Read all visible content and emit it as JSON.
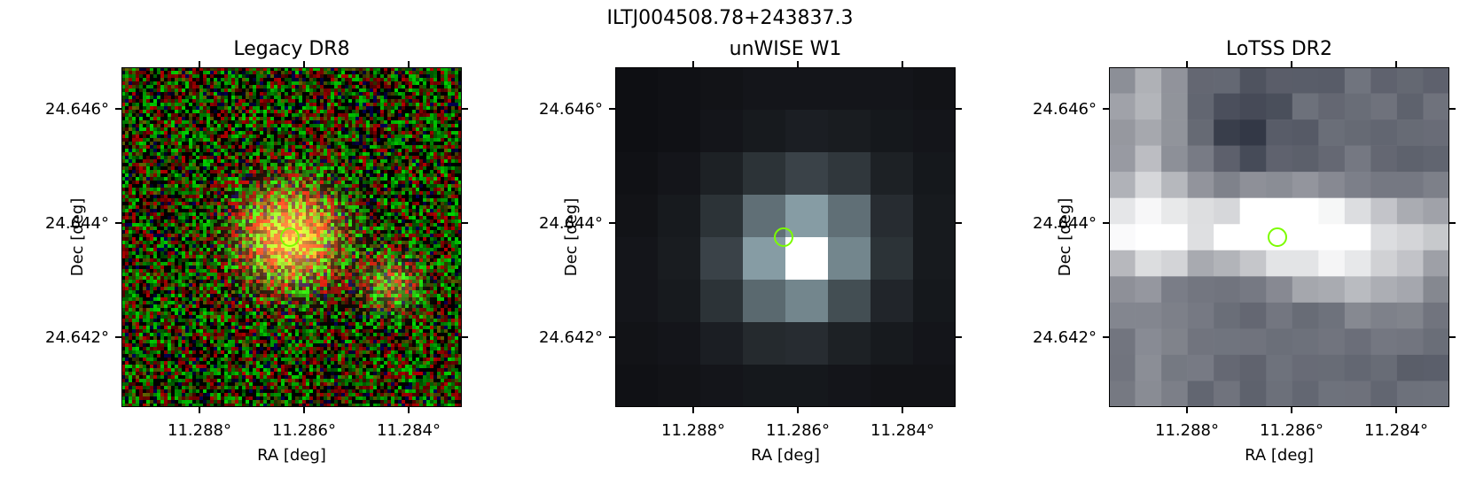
{
  "figure": {
    "title": "ILTJ004508.78+243837.3"
  },
  "panels": [
    {
      "title": "Legacy DR8",
      "xlabel": "RA [deg]",
      "ylabel": "Dec [deg]",
      "xticks": [
        "11.288°",
        "11.286°",
        "11.284°"
      ],
      "yticks": [
        "24.646°",
        "24.644°",
        "24.642°"
      ]
    },
    {
      "title": "unWISE W1",
      "xlabel": "RA [deg]",
      "ylabel": "Dec [deg]",
      "xticks": [
        "11.288°",
        "11.286°",
        "11.284°"
      ],
      "yticks": [
        "24.646°",
        "24.644°",
        "24.642°"
      ]
    },
    {
      "title": "LoTSS DR2",
      "xlabel": "RA [deg]",
      "ylabel": "Dec [deg]",
      "xticks": [
        "11.288°",
        "11.286°",
        "11.284°"
      ],
      "yticks": [
        "24.646°",
        "24.644°",
        "24.642°"
      ]
    }
  ],
  "marker": {
    "ra": 11.2862,
    "dec": 24.6438,
    "color": "#7cfc00"
  },
  "axes": {
    "ra_range": [
      11.2895,
      11.283
    ],
    "dec_range": [
      24.641,
      24.6468
    ]
  },
  "colors": {
    "frame": "#000000",
    "marker": "#7cfc00"
  }
}
